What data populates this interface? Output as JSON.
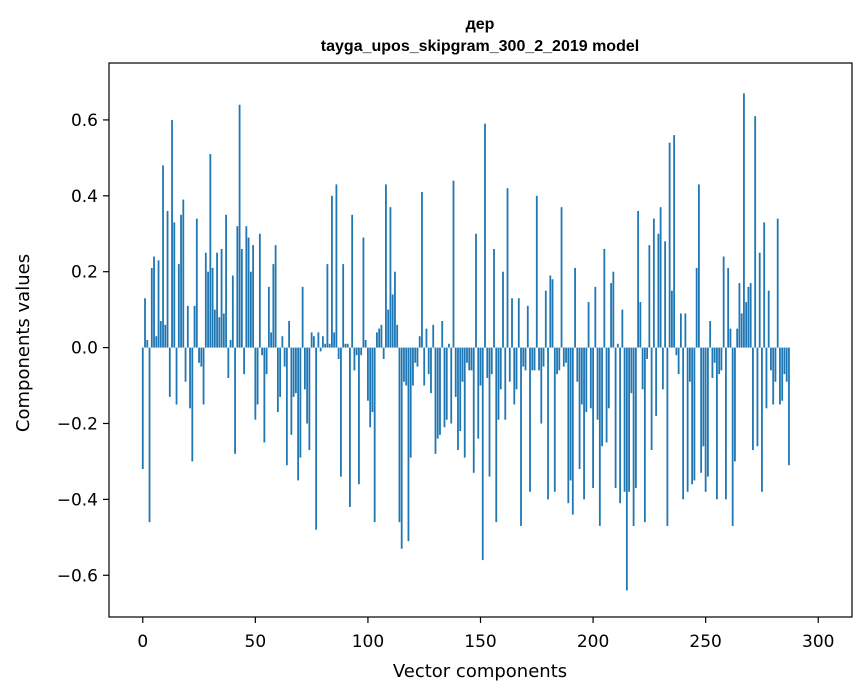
{
  "chart_data": {
    "type": "bar",
    "title": "дер",
    "subtitle": "tayga_upos_skipgram_300_2_2019 model",
    "xlabel": "Vector components",
    "ylabel": "Components values",
    "xlim": [
      -15,
      315
    ],
    "ylim": [
      -0.71,
      0.75
    ],
    "xticks": [
      0,
      50,
      100,
      150,
      200,
      250,
      300
    ],
    "xtick_labels": [
      "0",
      "50",
      "100",
      "150",
      "200",
      "250",
      "300"
    ],
    "yticks": [
      -0.6,
      -0.4,
      -0.2,
      0.0,
      0.2,
      0.4,
      0.6
    ],
    "ytick_labels": [
      "−0.6",
      "−0.4",
      "−0.2",
      "0.0",
      "0.2",
      "0.4",
      "0.6"
    ],
    "bar_color": "#1f77b4",
    "values": [
      -0.32,
      0.13,
      0.02,
      -0.46,
      0.21,
      0.24,
      0.03,
      0.23,
      0.07,
      0.48,
      0.06,
      0.36,
      -0.13,
      0.6,
      0.33,
      -0.15,
      0.22,
      0.35,
      0.39,
      -0.09,
      0.11,
      -0.16,
      -0.3,
      0.11,
      0.34,
      -0.04,
      -0.05,
      -0.15,
      0.25,
      0.2,
      0.51,
      0.21,
      0.1,
      0.25,
      0.08,
      0.26,
      0.09,
      0.35,
      -0.08,
      0.02,
      0.19,
      -0.28,
      0.32,
      0.64,
      0.26,
      -0.07,
      0.32,
      0.29,
      0.2,
      0.27,
      -0.19,
      -0.15,
      0.3,
      -0.02,
      -0.25,
      -0.07,
      0.16,
      0.04,
      0.22,
      0.27,
      -0.17,
      -0.13,
      0.03,
      -0.05,
      -0.31,
      0.07,
      -0.23,
      -0.13,
      -0.12,
      -0.35,
      -0.29,
      0.16,
      -0.11,
      -0.2,
      -0.27,
      0.04,
      0.03,
      -0.48,
      0.04,
      -0.01,
      0.03,
      0.01,
      0.22,
      0.01,
      0.4,
      0.04,
      0.43,
      -0.03,
      -0.34,
      0.22,
      0.01,
      0.01,
      -0.42,
      0.35,
      -0.06,
      -0.02,
      -0.36,
      -0.02,
      0.29,
      0.02,
      -0.14,
      -0.21,
      -0.17,
      -0.46,
      0.04,
      0.05,
      0.06,
      -0.03,
      0.43,
      0.1,
      0.37,
      0.14,
      0.2,
      0.06,
      -0.46,
      -0.53,
      -0.09,
      -0.1,
      -0.51,
      -0.29,
      -0.1,
      -0.04,
      -0.05,
      0.03,
      0.41,
      -0.1,
      0.05,
      -0.07,
      -0.12,
      0.06,
      -0.28,
      -0.24,
      -0.23,
      0.07,
      -0.21,
      -0.19,
      0.01,
      -0.2,
      0.44,
      -0.13,
      -0.27,
      -0.22,
      -0.09,
      -0.29,
      -0.04,
      -0.06,
      -0.06,
      -0.33,
      0.3,
      -0.24,
      -0.1,
      -0.56,
      0.59,
      -0.08,
      -0.34,
      -0.07,
      0.26,
      -0.46,
      -0.19,
      -0.11,
      0.2,
      -0.19,
      0.42,
      -0.09,
      0.13,
      -0.15,
      -0.11,
      0.13,
      -0.47,
      -0.05,
      -0.06,
      0.11,
      -0.38,
      -0.06,
      -0.06,
      0.4,
      -0.06,
      -0.2,
      -0.05,
      0.15,
      -0.4,
      0.19,
      0.18,
      -0.38,
      -0.07,
      -0.06,
      0.37,
      -0.05,
      -0.04,
      -0.41,
      -0.35,
      -0.44,
      0.21,
      -0.09,
      -0.32,
      -0.15,
      -0.4,
      -0.17,
      0.12,
      -0.16,
      -0.37,
      0.16,
      -0.19,
      -0.47,
      -0.26,
      0.26,
      -0.25,
      -0.16,
      0.17,
      0.2,
      -0.37,
      0.01,
      -0.41,
      0.1,
      -0.38,
      -0.64,
      -0.38,
      -0.12,
      -0.47,
      -0.37,
      0.36,
      0.12,
      -0.11,
      -0.46,
      -0.03,
      0.27,
      -0.27,
      0.34,
      -0.18,
      0.3,
      0.37,
      -0.11,
      0.28,
      -0.47,
      0.54,
      0.15,
      0.56,
      -0.02,
      -0.07,
      0.09,
      -0.4,
      0.09,
      -0.38,
      -0.09,
      -0.36,
      -0.35,
      0.21,
      0.43,
      -0.33,
      -0.26,
      -0.38,
      -0.34,
      0.07,
      -0.08,
      -0.04,
      -0.4,
      -0.07,
      -0.06,
      0.24,
      -0.4,
      0.21,
      0.05,
      -0.47,
      -0.3,
      0.05,
      0.17,
      0.09,
      0.67,
      0.12,
      0.16,
      0.17,
      -0.27,
      0.61,
      -0.26,
      0.25,
      -0.38,
      0.33,
      -0.16,
      0.15,
      -0.06,
      -0.15,
      -0.09,
      0.34,
      -0.15,
      -0.14,
      -0.07,
      -0.09,
      -0.31
    ]
  }
}
